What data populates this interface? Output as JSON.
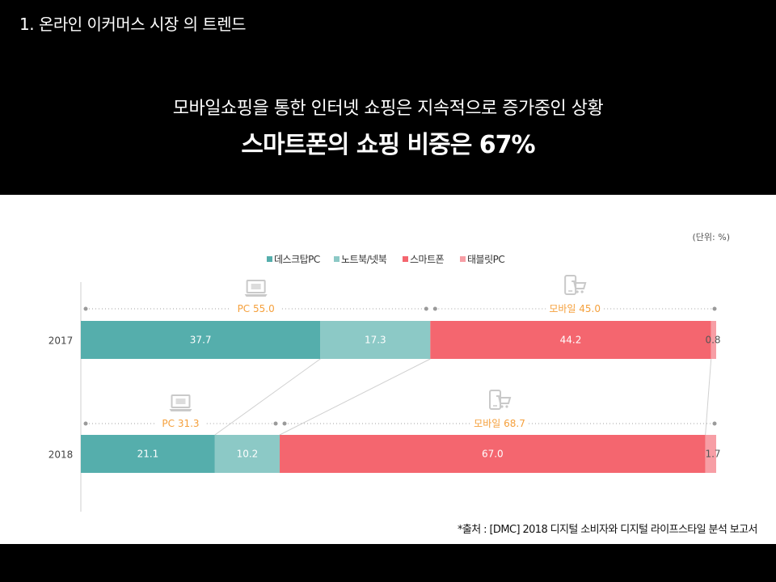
{
  "header": {
    "section_title": "1. 온라인 이커머스 시장 의 트렌드",
    "headline": "모바일쇼핑을 통한 인터넷 쇼핑은 지속적으로 증가중인 상황",
    "subheadline": "스마트폰의 쇼핑 비중은 67%"
  },
  "footer": {
    "source": "*출처 : [DMC] 2018 디지털 소비자와 디지털 라이프스타일 분석 보고서"
  },
  "chart_data": {
    "type": "bar",
    "orientation": "horizontal",
    "stacked": true,
    "unit_note": "(단위: %)",
    "categories": [
      "2017",
      "2018"
    ],
    "series": [
      {
        "name": "데스크탑PC",
        "values": [
          37.7,
          21.1
        ],
        "labels": [
          "37.7",
          "21.1"
        ],
        "color": "#55aeac"
      },
      {
        "name": "노트북/넷북",
        "values": [
          17.3,
          10.2
        ],
        "labels": [
          "17.3",
          "10.2"
        ],
        "color": "#8cc9c6"
      },
      {
        "name": "스마트폰",
        "values": [
          44.2,
          67.0
        ],
        "labels": [
          "44.2",
          "67.0"
        ],
        "color": "#f4666f"
      },
      {
        "name": "태블릿PC",
        "values": [
          0.8,
          1.7
        ],
        "labels": [
          "0.8",
          "1.7"
        ],
        "color": "#f79ea5"
      }
    ],
    "groups": [
      {
        "category": "2017",
        "pc_label": "PC 55.0",
        "mobile_label": "모바일 45.0"
      },
      {
        "category": "2018",
        "pc_label": "PC 31.3",
        "mobile_label": "모바일 68.7"
      }
    ],
    "group_label_color": "#f5a03c",
    "legend_position": "top-center",
    "xlim": [
      0,
      100
    ],
    "grid": false
  }
}
